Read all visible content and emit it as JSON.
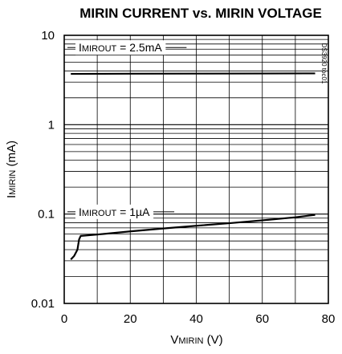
{
  "chart_data": {
    "type": "line",
    "title": "MIRIN CURRENT vs. MIRIN VOLTAGE",
    "xlabel": {
      "main": "V",
      "sub": "MIRIN",
      "unit": " (V)"
    },
    "ylabel": {
      "main": "I",
      "sub": "MIRIN",
      "unit": " (mA)"
    },
    "xlim": [
      0,
      80
    ],
    "ylim": [
      0.01,
      10
    ],
    "yscale": "log",
    "grid": true,
    "x_ticks": [
      "0",
      "20",
      "40",
      "60",
      "80"
    ],
    "y_ticks": [
      "0.01",
      "0.1",
      "1",
      "10"
    ],
    "code_label": "DS3920 toc01",
    "series": [
      {
        "name": "I MIROUT = 2.5mA",
        "label_main": "I",
        "label_sub": "MIROUT",
        "label_rest": " = 2.5mA",
        "x": [
          2,
          10,
          20,
          40,
          60,
          76
        ],
        "y": [
          3.7,
          3.71,
          3.72,
          3.73,
          3.74,
          3.75
        ]
      },
      {
        "name": "I MIROUT = 1µA",
        "label_main": "I",
        "label_sub": "MIROUT",
        "label_rest": " = 1µA",
        "x": [
          2,
          3,
          4,
          4.5,
          5,
          10,
          20,
          30,
          40,
          50,
          60,
          70,
          76
        ],
        "y": [
          0.031,
          0.034,
          0.04,
          0.052,
          0.057,
          0.059,
          0.064,
          0.069,
          0.074,
          0.079,
          0.085,
          0.092,
          0.098
        ]
      }
    ]
  }
}
